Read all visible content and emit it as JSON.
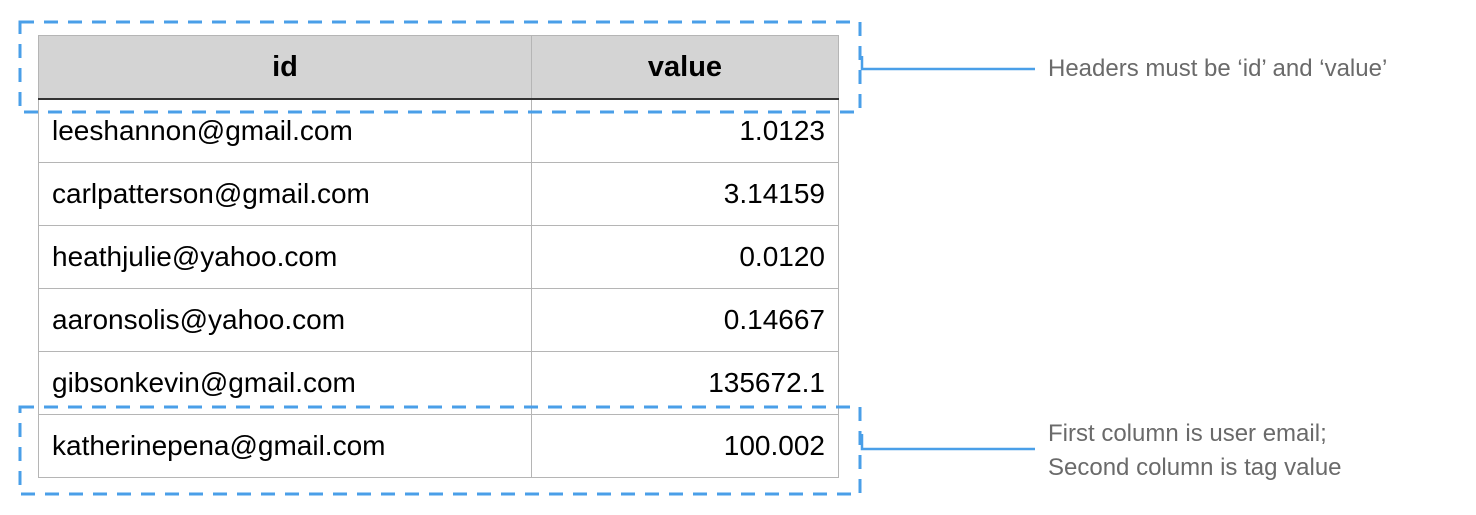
{
  "table": {
    "headers": [
      "id",
      "value"
    ],
    "rows": [
      {
        "id": "leeshannon@gmail.com",
        "value": "1.0123"
      },
      {
        "id": "carlpatterson@gmail.com",
        "value": "3.14159"
      },
      {
        "id": "heathjulie@yahoo.com",
        "value": "0.0120"
      },
      {
        "id": "aaronsolis@yahoo.com",
        "value": "0.14667"
      },
      {
        "id": "gibsonkevin@gmail.com",
        "value": "135672.1"
      },
      {
        "id": "katherinepena@gmail.com",
        "value": "100.002"
      }
    ]
  },
  "annotations": {
    "header_note": "Headers must be ‘id’ and ‘value’",
    "columns_note_line1": "First column is user email;",
    "columns_note_line2": "Second column is tag value"
  },
  "colors": {
    "callout_blue": "#4a9fe8",
    "header_fill": "#d4d4d4",
    "annotation_text": "#6a6a6a"
  }
}
